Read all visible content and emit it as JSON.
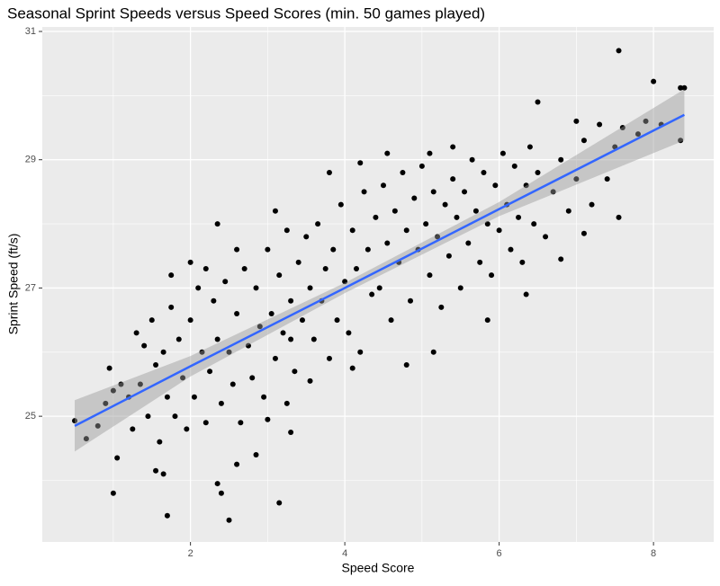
{
  "chart_data": {
    "type": "scatter",
    "title": "Seasonal Sprint Speeds versus Speed Scores (min. 50 games played)",
    "x_label": "Speed Score",
    "y_label": "Sprint Speed (ft/s)",
    "xlim": [
      0.08,
      8.78
    ],
    "ylim": [
      23.04,
      31.07
    ],
    "xticks": [
      2,
      4,
      6,
      8
    ],
    "yticks": [
      25,
      27,
      29,
      31
    ],
    "x_minor": [
      1,
      3,
      5,
      7
    ],
    "y_minor": [
      24,
      26,
      28,
      30
    ],
    "grid": true,
    "point_color": "#000000",
    "trend": {
      "color": "#3366ff",
      "band_color": "#999999",
      "x": [
        0.5,
        2,
        4,
        6,
        8.4
      ],
      "y": [
        24.85,
        25.78,
        27.0,
        28.23,
        29.7
      ],
      "lower": [
        24.45,
        25.62,
        26.92,
        28.12,
        29.3
      ],
      "upper": [
        25.25,
        25.94,
        27.08,
        28.34,
        30.1
      ]
    },
    "x": [
      7.55,
      8.0,
      8.35,
      8.4,
      8.35,
      0.5,
      1.0,
      1.05,
      1.7,
      2.5,
      3.15,
      2.35,
      2.4,
      2.6,
      2.85,
      3.3,
      1.55,
      1.65,
      0.8,
      0.65,
      0.95,
      1.0,
      2.35,
      2.0,
      1.75,
      3.1,
      3.8,
      4.2,
      4.55,
      5.1,
      5.4,
      6.5,
      7.0,
      7.3,
      7.5,
      7.55,
      7.1,
      6.8,
      6.35,
      5.85,
      5.15,
      4.8,
      4.1,
      3.3,
      3.55,
      3.25,
      3.0,
      1.2,
      1.3,
      1.35,
      1.45,
      1.5,
      1.55,
      1.6,
      1.65,
      1.7,
      1.75,
      1.8,
      1.85,
      1.9,
      1.95,
      2.0,
      2.05,
      2.1,
      2.15,
      2.2,
      2.25,
      2.3,
      2.35,
      2.4,
      2.45,
      2.5,
      2.55,
      2.6,
      2.65,
      2.7,
      2.75,
      2.8,
      2.85,
      2.9,
      2.95,
      3.0,
      3.05,
      3.1,
      3.15,
      3.2,
      3.25,
      3.3,
      3.35,
      3.4,
      3.45,
      3.5,
      3.55,
      3.6,
      3.65,
      3.7,
      3.75,
      3.8,
      3.85,
      3.9,
      3.95,
      4.0,
      4.05,
      4.1,
      4.15,
      4.2,
      4.25,
      4.3,
      4.35,
      4.4,
      4.45,
      4.5,
      4.55,
      4.6,
      4.65,
      4.7,
      4.75,
      4.8,
      4.85,
      4.9,
      4.95,
      5.0,
      5.05,
      5.1,
      5.15,
      5.2,
      5.25,
      5.3,
      5.35,
      5.4,
      5.45,
      5.5,
      5.55,
      5.6,
      5.65,
      5.7,
      5.75,
      5.8,
      5.85,
      5.9,
      5.95,
      6.0,
      6.05,
      6.1,
      6.15,
      6.2,
      6.25,
      6.3,
      6.35,
      6.4,
      6.45,
      6.5,
      6.6,
      6.7,
      6.8,
      6.9,
      7.0,
      7.1,
      7.2,
      7.4,
      7.6,
      7.8,
      7.9,
      8.1,
      1.1,
      0.9,
      1.25,
      1.4,
      2.2,
      2.6
    ],
    "values": [
      30.7,
      30.22,
      30.12,
      30.12,
      29.3,
      24.93,
      23.8,
      24.35,
      23.45,
      23.38,
      23.65,
      23.95,
      23.8,
      24.25,
      24.4,
      24.75,
      24.15,
      24.1,
      24.85,
      24.65,
      25.75,
      25.4,
      28.0,
      27.4,
      27.2,
      28.2,
      28.8,
      28.95,
      29.1,
      29.1,
      29.2,
      29.9,
      29.6,
      29.55,
      29.2,
      28.1,
      27.85,
      27.45,
      26.9,
      26.5,
      26.0,
      25.8,
      25.75,
      26.2,
      25.55,
      25.2,
      24.95,
      25.3,
      26.3,
      25.5,
      25.0,
      26.5,
      25.8,
      24.6,
      26.0,
      25.3,
      26.7,
      25.0,
      26.2,
      25.6,
      24.8,
      26.5,
      25.3,
      27.0,
      26.0,
      24.9,
      25.7,
      26.8,
      26.2,
      25.2,
      27.1,
      26.0,
      25.5,
      26.6,
      24.9,
      27.3,
      26.1,
      25.6,
      27.0,
      26.4,
      25.3,
      27.6,
      26.6,
      25.9,
      27.2,
      26.3,
      27.9,
      26.8,
      25.7,
      27.4,
      26.5,
      27.8,
      27.0,
      26.2,
      28.0,
      26.8,
      27.3,
      25.9,
      27.6,
      26.5,
      28.3,
      27.1,
      26.3,
      27.9,
      27.3,
      26.0,
      28.5,
      27.6,
      26.9,
      28.1,
      27.0,
      28.6,
      27.7,
      26.5,
      28.2,
      27.4,
      28.8,
      27.9,
      26.8,
      28.4,
      27.6,
      28.9,
      28.0,
      27.2,
      28.5,
      27.8,
      26.7,
      28.3,
      27.5,
      28.7,
      28.1,
      27.0,
      28.5,
      27.7,
      29.0,
      28.2,
      27.4,
      28.8,
      28.0,
      27.2,
      28.6,
      27.9,
      29.1,
      28.3,
      27.6,
      28.9,
      28.1,
      27.4,
      28.6,
      29.2,
      28.0,
      28.8,
      27.8,
      28.5,
      29.0,
      28.2,
      28.7,
      29.3,
      28.3,
      28.7,
      29.5,
      29.4,
      29.6,
      29.55,
      25.5,
      25.2,
      24.8,
      26.1,
      27.3,
      27.6
    ]
  }
}
